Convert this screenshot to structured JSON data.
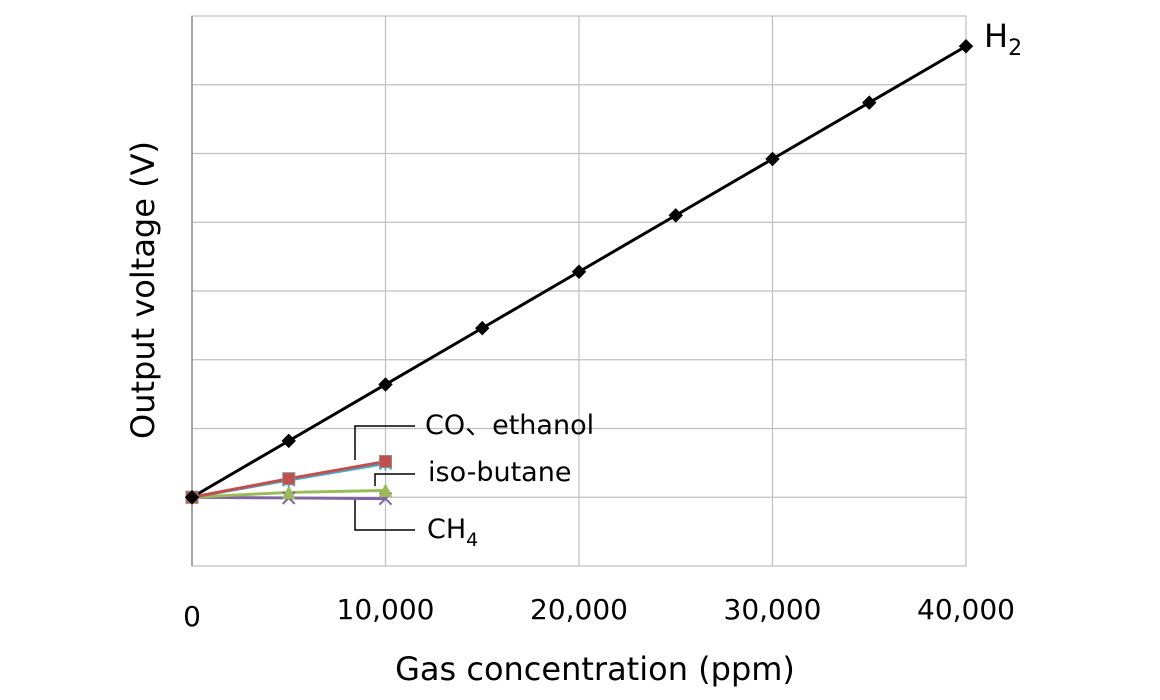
{
  "chart_data": {
    "type": "line",
    "xlabel": "Gas concentration (ppm)",
    "ylabel": "Output voltage (V)",
    "xlim": [
      0,
      40000
    ],
    "ylim": [
      -1,
      7
    ],
    "grid": true,
    "x_tick_labels": [
      "0",
      "10,000",
      "20,000",
      "30,000",
      "40,000"
    ],
    "y_ticks_labeled": false,
    "legend": "inline labels",
    "series": [
      {
        "name": "H2",
        "label_main": "H",
        "label_sub": "2",
        "color": "#000000",
        "marker": "diamond",
        "x": [
          0,
          5000,
          10000,
          15000,
          20000,
          25000,
          30000,
          35000,
          40000
        ],
        "y": [
          0,
          0.82,
          1.64,
          2.46,
          3.28,
          4.1,
          4.92,
          5.74,
          6.56
        ]
      },
      {
        "name": "CO",
        "label_main": "CO、ethanol",
        "label_sub": "",
        "color": "#c0504d",
        "marker": "square",
        "x": [
          0,
          5000,
          10000
        ],
        "y": [
          0,
          0.27,
          0.52
        ]
      },
      {
        "name": "ethanol",
        "label_main": "",
        "label_sub": "",
        "color": "#4bacc6",
        "marker": "asterisk",
        "x": [
          0,
          5000,
          10000
        ],
        "y": [
          0,
          0.25,
          0.49
        ]
      },
      {
        "name": "iso-butane",
        "label_main": "iso-butane",
        "label_sub": "",
        "color": "#9bbb59",
        "marker": "triangle",
        "x": [
          0,
          5000,
          10000
        ],
        "y": [
          0,
          0.07,
          0.1
        ]
      },
      {
        "name": "CH4",
        "label_main": "CH",
        "label_sub": "4",
        "color": "#8064a2",
        "marker": "x",
        "x": [
          0,
          5000,
          10000
        ],
        "y": [
          0,
          -0.01,
          -0.02
        ]
      }
    ]
  }
}
